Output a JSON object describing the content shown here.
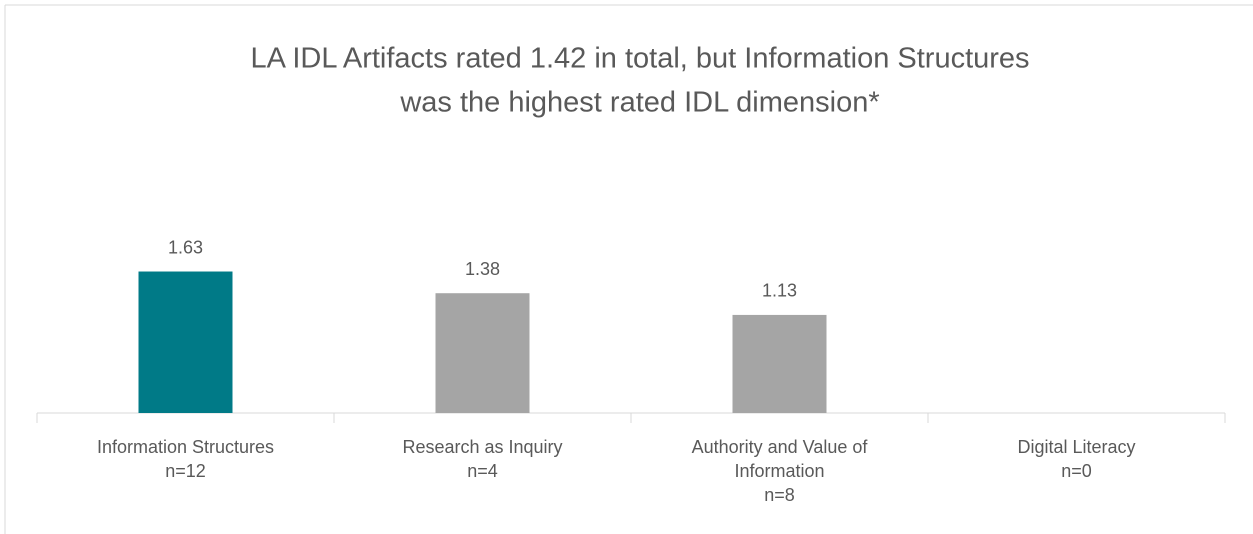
{
  "chart_data": {
    "type": "bar",
    "title": [
      "LA IDL Artifacts rated 1.42 in total, but Information Structures",
      "was the highest rated IDL dimension*"
    ],
    "categories": [
      [
        "Information Structures",
        "n=12"
      ],
      [
        "Research as Inquiry",
        "n=4"
      ],
      [
        "Authority and Value of",
        "Information",
        "n=8"
      ],
      [
        "Digital Literacy",
        "n=0"
      ]
    ],
    "values": [
      1.63,
      1.38,
      1.13,
      null
    ],
    "colors": [
      "#007a87",
      "#a5a5a5",
      "#a5a5a5",
      "#a5a5a5"
    ],
    "ylim": [
      0,
      2.5
    ]
  }
}
